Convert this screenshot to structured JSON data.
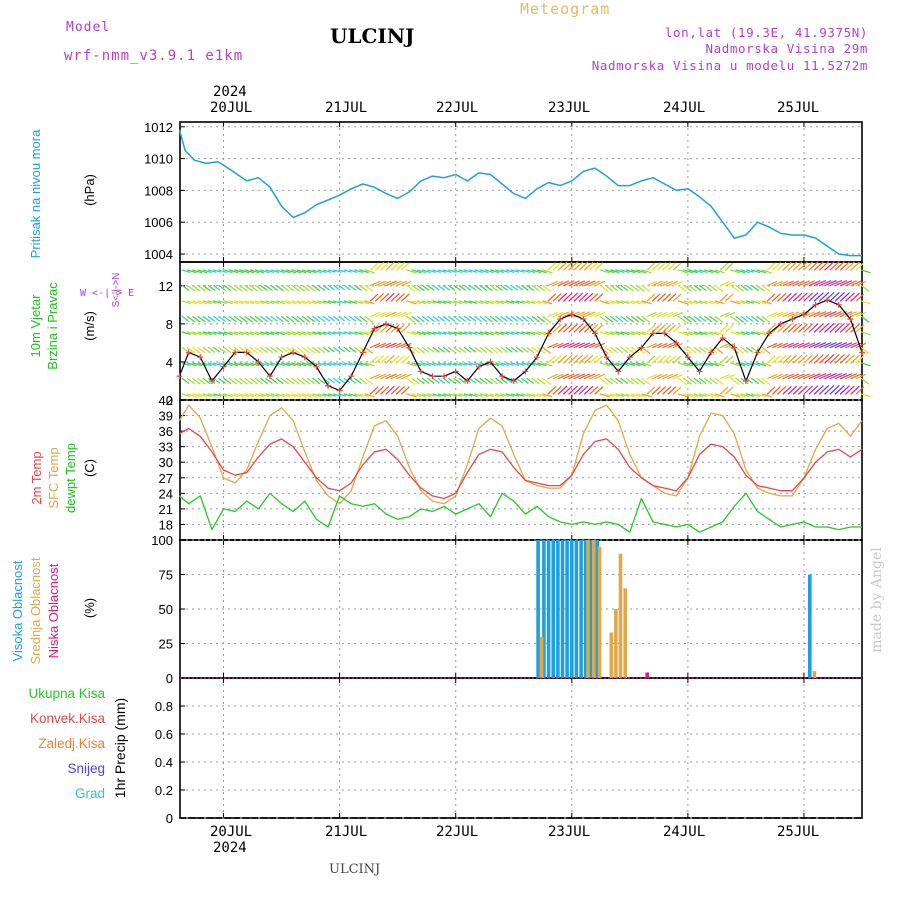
{
  "header": {
    "model_label": "Model",
    "model_name": "wrf-nmm_v3.9.1 e1km",
    "title": "ULCINJ",
    "meteogram": "Meteogram",
    "coords": "lon,lat (19.3E, 41.9375N)",
    "elevation": "Nadmorska Visina 29m",
    "model_elevation": "Nadmorska Visina u modelu 11.5272m"
  },
  "dates": {
    "year_top": "2024",
    "year_bottom": "2024",
    "days": [
      "20JUL",
      "21JUL",
      "22JUL",
      "23JUL",
      "24JUL",
      "25JUL"
    ]
  },
  "panels": {
    "pressure": {
      "label": "Pritisak na nivou mora",
      "unit": "(hPa)"
    },
    "wind": {
      "label1": "10m Vjetar",
      "label2": "Brzina i Pravac",
      "unit": "(m/s)",
      "compass": "W <-|-> E",
      "compass_ns": "S<-|->N"
    },
    "temp": {
      "label1": "2m Temp",
      "label2": "SFC Temp",
      "label3": "dewpt Temp",
      "unit": "(C)"
    },
    "cloud": {
      "label1": "Visoka Oblacnost",
      "label2": "Srednja Oblacnost",
      "label3": "Niska Oblacnost",
      "unit": "(%)"
    },
    "precip": {
      "label": "1hr Precip (mm)",
      "legend": [
        "Ukupna Kisa",
        "Konvek.Kisa",
        "Zaledj.Kisa",
        "Snijeg",
        "Grad"
      ]
    }
  },
  "made_by": "made by Angel",
  "footer": "ULCINJ",
  "colors": {
    "pressure": "#1ea0e0",
    "t2m": "#e84848",
    "sfc": "#e0a848",
    "dewpt": "#28c828",
    "cloud_high": "#1ea0e0",
    "cloud_mid": "#e0a848",
    "cloud_low": "#e01878",
    "legend": [
      "#28c828",
      "#e84848",
      "#f08030",
      "#4848e0",
      "#28c8c8"
    ],
    "label_pressure": "#1ea0e0",
    "label_wind": [
      "#20c020",
      "#20c020"
    ],
    "label_compass": "#b040d0"
  },
  "chart_data": [
    {
      "type": "line",
      "title": "",
      "ylabel": "(hPa)",
      "ylim": [
        1003.5,
        1012.3
      ],
      "yticks": [
        1004,
        1006,
        1008,
        1010,
        1012
      ],
      "x_day_start": 19.625,
      "x_day_end": 25.5,
      "series": [
        {
          "name": "Pritisak na nivou mora",
          "x": [
            19.62,
            19.67,
            19.75,
            19.85,
            19.95,
            20.0,
            20.1,
            20.2,
            20.3,
            20.4,
            20.5,
            20.6,
            20.7,
            20.8,
            20.9,
            21.0,
            21.1,
            21.2,
            21.3,
            21.4,
            21.5,
            21.6,
            21.7,
            21.8,
            21.9,
            22.0,
            22.1,
            22.2,
            22.3,
            22.4,
            22.5,
            22.6,
            22.7,
            22.8,
            22.9,
            23.0,
            23.1,
            23.2,
            23.3,
            23.4,
            23.5,
            23.6,
            23.7,
            23.8,
            23.9,
            24.0,
            24.1,
            24.2,
            24.3,
            24.4,
            24.5,
            24.6,
            24.7,
            24.8,
            24.9,
            25.0,
            25.1,
            25.2,
            25.3,
            25.4,
            25.5
          ],
          "y": [
            1011.8,
            1010.5,
            1009.9,
            1009.7,
            1009.8,
            1009.6,
            1009.1,
            1008.6,
            1008.8,
            1008.2,
            1007.0,
            1006.3,
            1006.6,
            1007.1,
            1007.4,
            1007.7,
            1008.1,
            1008.4,
            1008.2,
            1007.8,
            1007.5,
            1007.9,
            1008.6,
            1008.9,
            1008.8,
            1009.0,
            1008.6,
            1009.1,
            1009.0,
            1008.4,
            1007.8,
            1007.5,
            1008.1,
            1008.5,
            1008.3,
            1008.6,
            1009.2,
            1009.4,
            1008.9,
            1008.3,
            1008.3,
            1008.6,
            1008.8,
            1008.4,
            1008.0,
            1008.1,
            1007.6,
            1007.0,
            1006.0,
            1005.0,
            1005.2,
            1006.0,
            1005.7,
            1005.3,
            1005.2,
            1005.2,
            1005.0,
            1004.5,
            1004.0,
            1003.9,
            1003.9
          ]
        }
      ]
    },
    {
      "type": "line",
      "title": "",
      "ylabel": "(m/s)",
      "ylim": [
        0,
        14.5
      ],
      "yticks": [
        0,
        4,
        8,
        12
      ],
      "series": [
        {
          "name": "10m Vjetar brzina",
          "x": [
            19.62,
            19.7,
            19.8,
            19.9,
            20.0,
            20.1,
            20.2,
            20.3,
            20.4,
            20.5,
            20.6,
            20.7,
            20.8,
            20.9,
            21.0,
            21.1,
            21.2,
            21.3,
            21.4,
            21.5,
            21.6,
            21.7,
            21.8,
            21.9,
            22.0,
            22.1,
            22.2,
            22.3,
            22.4,
            22.5,
            22.6,
            22.7,
            22.8,
            22.9,
            23.0,
            23.1,
            23.2,
            23.3,
            23.4,
            23.5,
            23.6,
            23.7,
            23.8,
            23.9,
            24.0,
            24.1,
            24.2,
            24.3,
            24.4,
            24.5,
            24.6,
            24.7,
            24.8,
            24.9,
            25.0,
            25.1,
            25.2,
            25.3,
            25.4,
            25.5
          ],
          "y": [
            2.5,
            5.0,
            4.5,
            2.0,
            3.5,
            5.0,
            5.0,
            4.0,
            2.5,
            4.5,
            5.0,
            4.5,
            3.5,
            1.5,
            1.0,
            2.5,
            5.0,
            7.5,
            8.0,
            7.5,
            5.5,
            3.0,
            2.5,
            2.5,
            3.0,
            2.0,
            3.5,
            4.0,
            2.5,
            2.0,
            3.0,
            4.5,
            7.0,
            8.5,
            9.0,
            8.5,
            7.0,
            4.5,
            3.0,
            4.5,
            5.5,
            7.0,
            7.0,
            6.0,
            4.5,
            3.0,
            5.0,
            6.5,
            5.5,
            2.0,
            5.0,
            7.0,
            8.0,
            8.5,
            9.0,
            10.0,
            10.5,
            10.0,
            8.5,
            5.0
          ]
        }
      ]
    },
    {
      "type": "line",
      "title": "",
      "ylabel": "(C)",
      "ylim": [
        15,
        42
      ],
      "yticks": [
        18,
        21,
        24,
        27,
        30,
        33,
        36,
        39,
        42
      ],
      "series": [
        {
          "name": "2m Temp",
          "x": [
            19.62,
            19.7,
            19.8,
            19.9,
            20.0,
            20.1,
            20.2,
            20.3,
            20.4,
            20.5,
            20.6,
            20.7,
            20.8,
            20.9,
            21.0,
            21.1,
            21.2,
            21.3,
            21.4,
            21.5,
            21.6,
            21.7,
            21.8,
            21.9,
            22.0,
            22.1,
            22.2,
            22.3,
            22.4,
            22.5,
            22.6,
            22.7,
            22.8,
            22.9,
            23.0,
            23.1,
            23.2,
            23.3,
            23.4,
            23.5,
            23.6,
            23.7,
            23.8,
            23.9,
            24.0,
            24.1,
            24.2,
            24.3,
            24.4,
            24.5,
            24.6,
            24.7,
            24.8,
            24.9,
            25.0,
            25.1,
            25.2,
            25.3,
            25.4,
            25.5
          ],
          "y": [
            35.5,
            36.5,
            35.0,
            32.0,
            28.5,
            27.5,
            28.0,
            31.0,
            33.5,
            34.5,
            33.0,
            30.0,
            27.0,
            25.0,
            24.5,
            26.0,
            29.5,
            32.0,
            32.5,
            30.5,
            27.5,
            25.0,
            23.5,
            23.0,
            24.0,
            28.0,
            31.5,
            32.5,
            32.0,
            29.0,
            26.5,
            26.0,
            25.5,
            25.5,
            27.5,
            31.5,
            34.0,
            34.5,
            32.5,
            29.0,
            27.0,
            25.5,
            25.0,
            24.5,
            27.0,
            31.5,
            33.5,
            33.0,
            31.0,
            27.5,
            25.5,
            25.0,
            24.5,
            24.5,
            27.0,
            30.0,
            32.0,
            32.5,
            31.0,
            32.5
          ]
        },
        {
          "name": "SFC Temp",
          "x": [
            19.62,
            19.7,
            19.8,
            19.9,
            20.0,
            20.1,
            20.2,
            20.3,
            20.4,
            20.5,
            20.6,
            20.7,
            20.8,
            20.9,
            21.0,
            21.1,
            21.2,
            21.3,
            21.4,
            21.5,
            21.6,
            21.7,
            21.8,
            21.9,
            22.0,
            22.1,
            22.2,
            22.3,
            22.4,
            22.5,
            22.6,
            22.7,
            22.8,
            22.9,
            23.0,
            23.1,
            23.2,
            23.3,
            23.4,
            23.5,
            23.6,
            23.7,
            23.8,
            23.9,
            24.0,
            24.1,
            24.2,
            24.3,
            24.4,
            24.5,
            24.6,
            24.7,
            24.8,
            24.9,
            25.0,
            25.1,
            25.2,
            25.3,
            25.4,
            25.5
          ],
          "y": [
            38.0,
            41.0,
            38.5,
            33.0,
            27.0,
            26.0,
            28.5,
            34.0,
            39.0,
            40.5,
            38.0,
            32.0,
            26.5,
            23.5,
            22.0,
            24.5,
            31.0,
            37.0,
            38.0,
            35.0,
            29.0,
            24.5,
            22.5,
            22.0,
            23.5,
            29.5,
            36.5,
            38.5,
            37.0,
            31.5,
            26.5,
            25.5,
            25.0,
            25.0,
            27.5,
            35.5,
            40.0,
            41.0,
            38.0,
            31.5,
            27.0,
            25.5,
            24.0,
            23.5,
            27.0,
            35.0,
            39.5,
            39.0,
            35.5,
            28.5,
            25.0,
            24.0,
            23.5,
            23.5,
            27.0,
            32.5,
            36.5,
            37.5,
            35.0,
            38.0
          ]
        },
        {
          "name": "dewpt Temp",
          "x": [
            19.62,
            19.7,
            19.8,
            19.9,
            20.0,
            20.1,
            20.2,
            20.3,
            20.4,
            20.5,
            20.6,
            20.7,
            20.8,
            20.9,
            21.0,
            21.1,
            21.2,
            21.3,
            21.4,
            21.5,
            21.6,
            21.7,
            21.8,
            21.9,
            22.0,
            22.1,
            22.2,
            22.3,
            22.4,
            22.5,
            22.6,
            22.7,
            22.8,
            22.9,
            23.0,
            23.1,
            23.2,
            23.3,
            23.4,
            23.5,
            23.6,
            23.7,
            23.8,
            23.9,
            24.0,
            24.1,
            24.2,
            24.3,
            24.4,
            24.5,
            24.6,
            24.7,
            24.8,
            24.9,
            25.0,
            25.1,
            25.2,
            25.3,
            25.4,
            25.5
          ],
          "y": [
            23.5,
            22.0,
            23.5,
            17.0,
            21.0,
            20.5,
            22.5,
            21.0,
            24.0,
            22.0,
            20.5,
            22.5,
            19.0,
            17.5,
            23.5,
            22.0,
            21.5,
            22.0,
            20.0,
            19.0,
            19.5,
            21.0,
            20.5,
            21.5,
            20.0,
            21.0,
            22.0,
            19.5,
            24.0,
            22.5,
            20.0,
            21.5,
            19.5,
            18.5,
            18.0,
            18.5,
            18.0,
            18.5,
            18.0,
            16.5,
            23.0,
            18.5,
            18.0,
            17.5,
            18.0,
            16.5,
            17.5,
            18.5,
            21.5,
            24.0,
            20.5,
            19.0,
            17.5,
            18.0,
            18.5,
            17.5,
            17.5,
            17.0,
            17.5,
            17.5
          ]
        }
      ]
    },
    {
      "type": "bar",
      "title": "",
      "ylabel": "(%)",
      "ylim": [
        0,
        100
      ],
      "yticks": [
        0,
        25,
        50,
        75,
        100
      ],
      "series": [
        {
          "name": "Visoka Oblacnost",
          "x": [
            22.71,
            22.76,
            22.8,
            22.84,
            22.88,
            22.92,
            22.96,
            23.0,
            23.04,
            23.08,
            23.12,
            23.16,
            23.22,
            25.05
          ],
          "y": [
            100,
            100,
            100,
            100,
            100,
            100,
            100,
            100,
            100,
            100,
            100,
            100,
            100,
            75
          ]
        },
        {
          "name": "Srednja Oblacnost",
          "x": [
            22.74,
            23.14,
            23.19,
            23.24,
            23.29,
            23.34,
            23.38,
            23.42,
            23.46,
            23.5,
            25.09
          ],
          "y": [
            30,
            100,
            100,
            95,
            0,
            33,
            50,
            90,
            65,
            0,
            5
          ]
        },
        {
          "name": "Niska Oblacnost",
          "x": [
            23.65
          ],
          "y": [
            4
          ]
        }
      ]
    },
    {
      "type": "bar",
      "title": "",
      "ylabel": "1hr Precip (mm)",
      "ylim": [
        0,
        1.0
      ],
      "yticks": [
        0,
        0.2,
        0.4,
        0.6,
        0.8
      ],
      "series": []
    }
  ]
}
